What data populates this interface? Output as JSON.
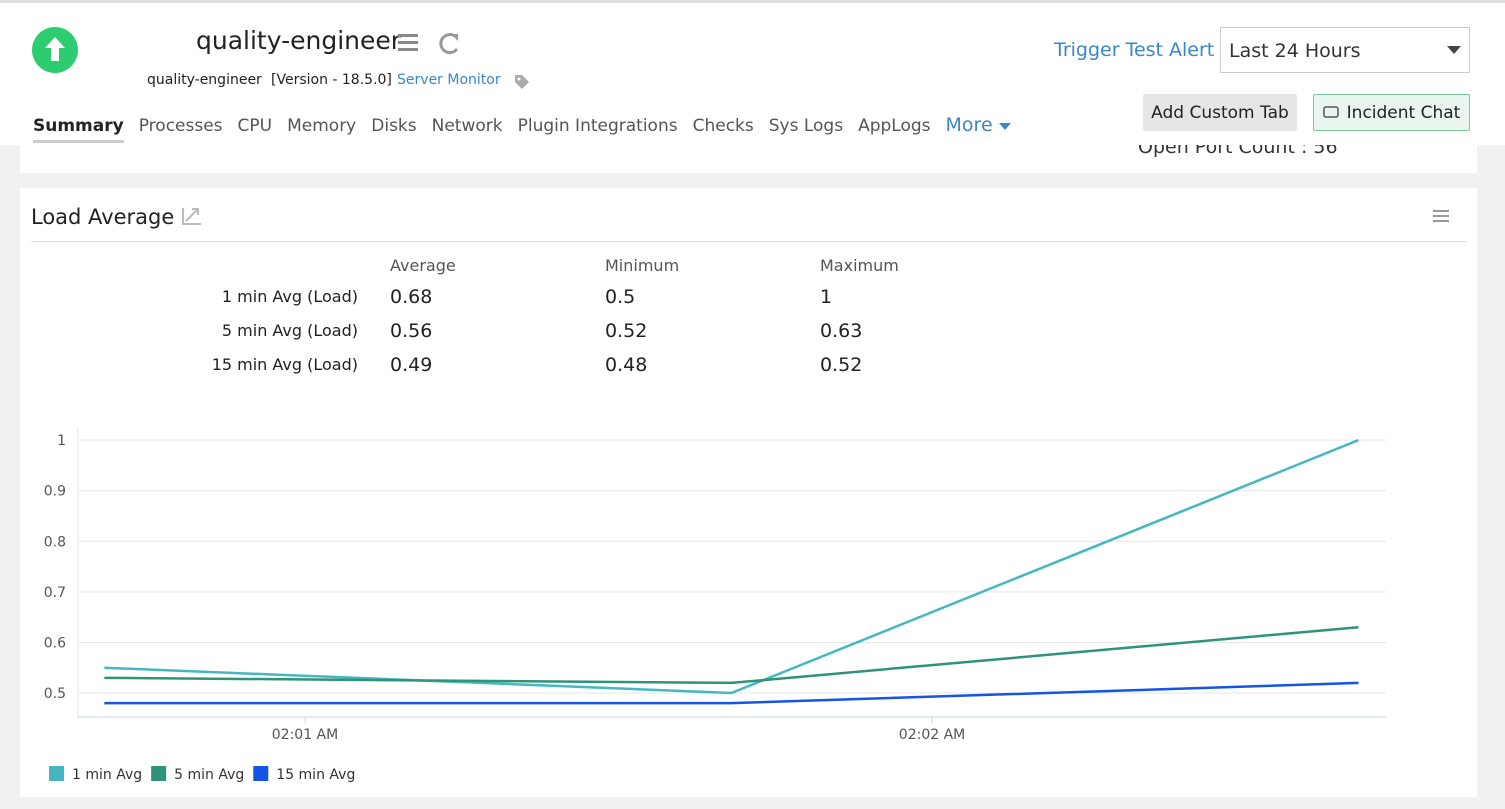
{
  "header": {
    "title": "quality-engineer",
    "host": "quality-engineer",
    "version": "[Version - 18.5.0]",
    "monitor_type": "Server Monitor",
    "trigger_alert": "Trigger Test Alert",
    "period": "Last 24 Hours",
    "add_custom_tab": "Add Custom Tab",
    "incident_chat": "Incident Chat"
  },
  "tabs": [
    "Summary",
    "Processes",
    "CPU",
    "Memory",
    "Disks",
    "Network",
    "Plugin Integrations",
    "Checks",
    "Sys Logs",
    "AppLogs",
    "More"
  ],
  "open_port_count": "Open Port Count : 56",
  "widget": {
    "title": "Load Average",
    "columns": [
      "Average",
      "Minimum",
      "Maximum"
    ],
    "rows": [
      {
        "label": "1 min Avg (Load)",
        "values": [
          0.68,
          0.5,
          1
        ]
      },
      {
        "label": "5 min Avg (Load)",
        "values": [
          0.56,
          0.52,
          0.63
        ]
      },
      {
        "label": "15 min Avg (Load)",
        "values": [
          0.49,
          0.48,
          0.52
        ]
      }
    ]
  },
  "chart_data": {
    "type": "line",
    "x": [
      120.68,
      121.68,
      122.68
    ],
    "xlim": [
      120.638,
      122.724
    ],
    "xticks": [
      {
        "value": 121,
        "label": "02:01 AM"
      },
      {
        "value": 122,
        "label": "02:02 AM"
      }
    ],
    "ylim": [
      0.4526,
      1.024
    ],
    "yticks": [
      0.5,
      0.6,
      0.7,
      0.8,
      0.9,
      1
    ],
    "grid": true,
    "legend": "bottom-left",
    "series": [
      {
        "name": "1 min Avg",
        "color": "#45b7c1",
        "values": [
          0.55,
          0.5,
          1
        ]
      },
      {
        "name": "5 min Avg",
        "color": "#2e9378",
        "values": [
          0.53,
          0.52,
          0.63
        ]
      },
      {
        "name": "15 min Avg",
        "color": "#1554e8",
        "values": [
          0.48,
          0.48,
          0.52
        ]
      }
    ]
  }
}
